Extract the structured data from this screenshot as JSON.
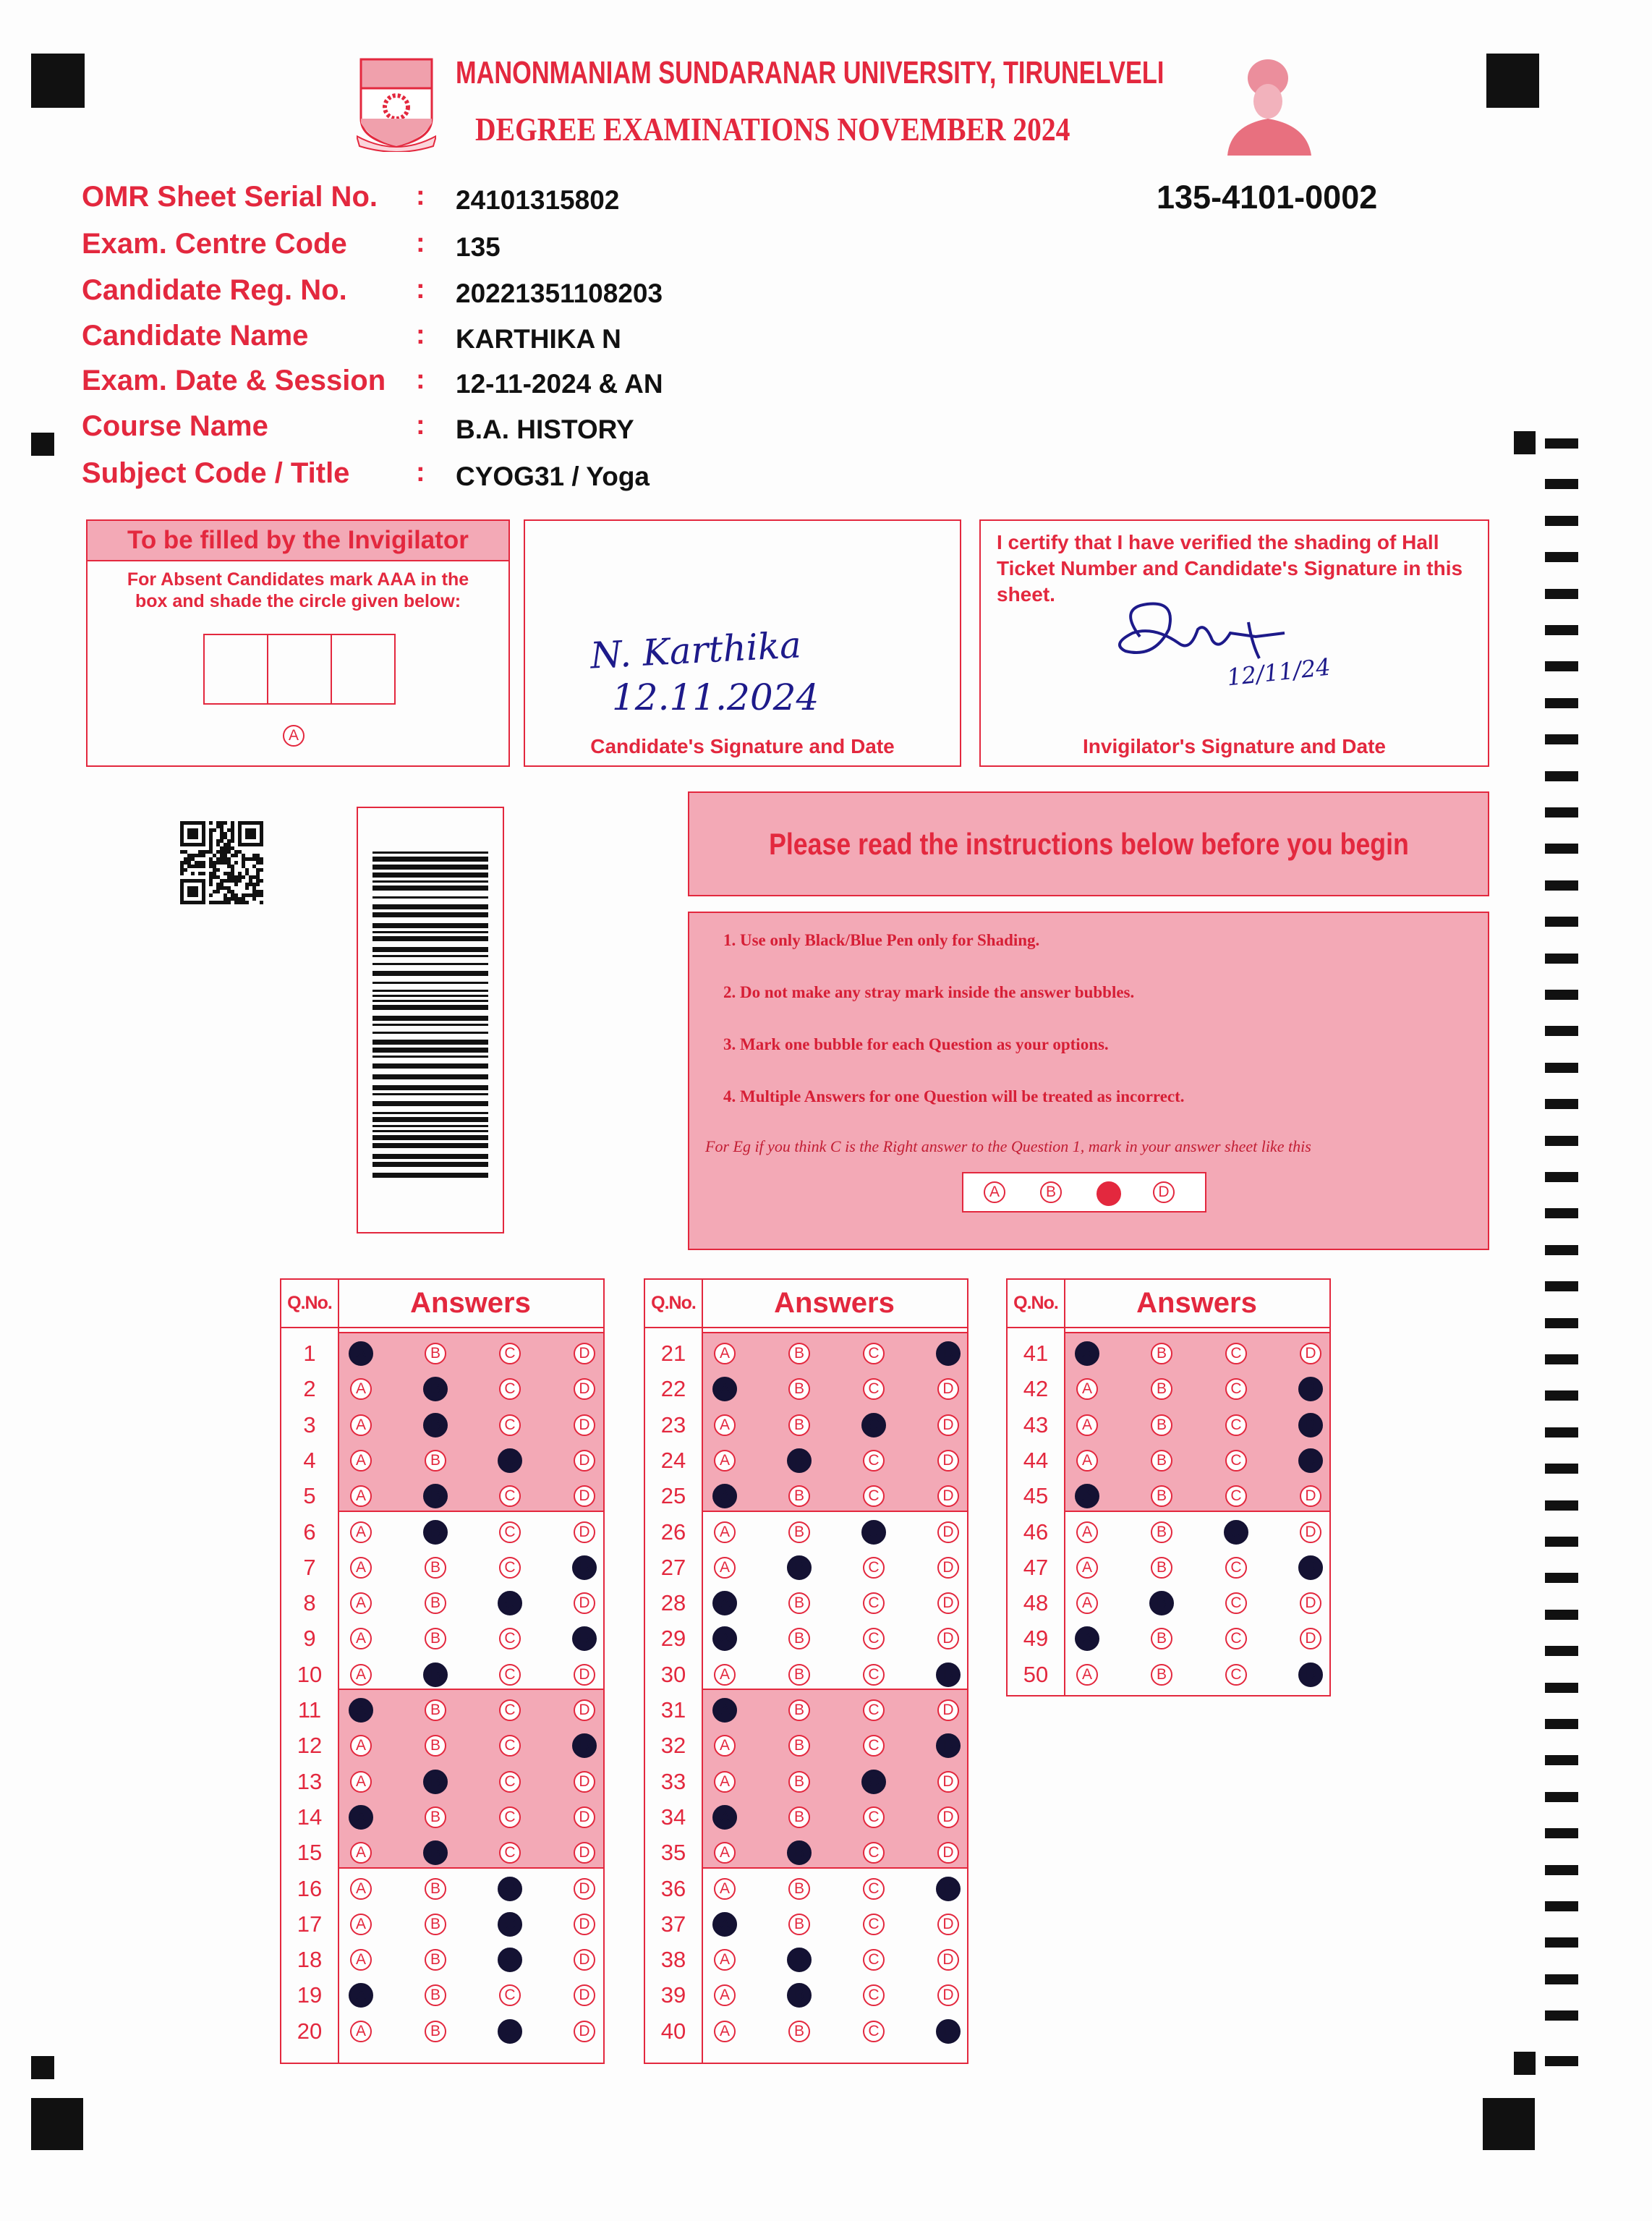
{
  "header": {
    "university": "MANONMANIAM SUNDARANAR UNIVERSITY, TIRUNELVELI",
    "exam": "DEGREE EXAMINATIONS NOVEMBER 2024",
    "sheet_code": "135-4101-0002"
  },
  "fields": [
    {
      "label": "OMR Sheet Serial No.",
      "value": "24101315802"
    },
    {
      "label": "Exam. Centre Code",
      "value": "135"
    },
    {
      "label": "Candidate Reg. No.",
      "value": "20221351108203"
    },
    {
      "label": "Candidate Name",
      "value": "KARTHIKA N"
    },
    {
      "label": "Exam. Date & Session",
      "value": "12-11-2024 & AN"
    },
    {
      "label": "Course Name",
      "value": "B.A. HISTORY"
    },
    {
      "label": "Subject Code / Title",
      "value": "CYOG31 / Yoga"
    }
  ],
  "colon": ":",
  "invigilator_box": {
    "title": "To be filled by the Invigilator",
    "text": "For Absent Candidates mark AAA in the box and shade the circle given below:",
    "bubble": "A"
  },
  "candidate_signature": {
    "caption": "Candidate's Signature and Date",
    "signature": "N. Karthika",
    "date": "12.11.2024"
  },
  "invigilator_signature": {
    "certify": "I certify that I have verified the shading of Hall Ticket Number and Candidate's Signature in this sheet.",
    "caption": "Invigilator's Signature and Date",
    "date": "12/11/24"
  },
  "instructions": {
    "heading": "Please read the instructions below before you begin",
    "items": [
      "1. Use only Black/Blue Pen only for Shading.",
      "2. Do not make any stray mark inside the answer bubbles.",
      "3. Mark one bubble for each Question as your options.",
      "4. Multiple Answers for one Question will be treated as incorrect."
    ],
    "example_text": "For Eg if you think C is the Right answer to the Question 1, mark in your answer sheet like this",
    "example_options": [
      "A",
      "B",
      "C",
      "D"
    ],
    "example_marked": "C"
  },
  "answer_sheet": {
    "qno_header": "Q.No.",
    "answers_header": "Answers",
    "options": [
      "A",
      "B",
      "C",
      "D"
    ],
    "answers": [
      "A",
      "B",
      "B",
      "C",
      "B",
      "B",
      "D",
      "C",
      "D",
      "B",
      "A",
      "D",
      "B",
      "A",
      "B",
      "C",
      "C",
      "C",
      "A",
      "C",
      "D",
      "A",
      "C",
      "B",
      "A",
      "C",
      "B",
      "A",
      "A",
      "D",
      "A",
      "D",
      "C",
      "A",
      "B",
      "D",
      "A",
      "B",
      "B",
      "D",
      "A",
      "D",
      "D",
      "D",
      "A",
      "C",
      "D",
      "B",
      "A",
      "D"
    ]
  },
  "colors": {
    "accent": "#e3283e",
    "shade": "#f3a9b6",
    "ink": "#141233"
  }
}
